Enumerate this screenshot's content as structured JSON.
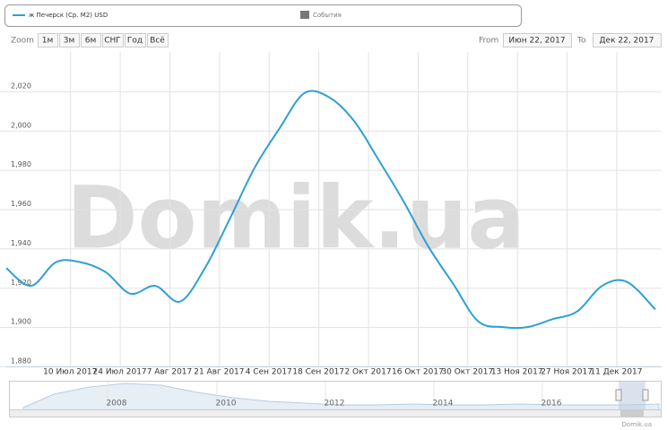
{
  "legend": {
    "events": "События"
  },
  "zoom": {
    "label": "Zoom",
    "buttons": [
      "1м",
      "3м",
      "6м",
      "СНГ",
      "Год",
      "Всё"
    ]
  },
  "range": {
    "from_label": "From",
    "from": "Июн 22, 2017",
    "to_label": "To",
    "to": "Дек 22, 2017"
  },
  "watermark": "Domik.ua",
  "credit": "Domik.ua",
  "navigator": {
    "labels": [
      "2008",
      "2010",
      "2012",
      "2014",
      "2016"
    ]
  },
  "chart_data": {
    "type": "line",
    "x": [
      "2017-06-22",
      "2017-06-29",
      "2017-07-06",
      "2017-07-13",
      "2017-07-20",
      "2017-07-27",
      "2017-08-03",
      "2017-08-10",
      "2017-08-17",
      "2017-08-24",
      "2017-08-31",
      "2017-09-07",
      "2017-09-14",
      "2017-09-21",
      "2017-09-28",
      "2017-10-05",
      "2017-10-12",
      "2017-10-19",
      "2017-10-26",
      "2017-11-02",
      "2017-11-09",
      "2017-11-16",
      "2017-11-23",
      "2017-11-30",
      "2017-12-07",
      "2017-12-14",
      "2017-12-22"
    ],
    "series": [
      {
        "name": "ж Печерск (Ср. М2) USD",
        "color": "#2f9fd6",
        "values": [
          1930,
          1921,
          1933,
          1933,
          1928,
          1917,
          1921,
          1913,
          1930,
          1955,
          1981,
          2001,
          2019,
          2017,
          2005,
          1985,
          1964,
          1941,
          1922,
          1903,
          1900,
          1900,
          1904,
          1908,
          1921,
          1923,
          1909
        ]
      }
    ],
    "xlim": [
      "2017-06-22",
      "2017-12-22"
    ],
    "xticks": [
      {
        "value": "2017-07-10",
        "label": "10 Июл 2017"
      },
      {
        "value": "2017-07-24",
        "label": "24 Июл 2017"
      },
      {
        "value": "2017-08-07",
        "label": "7 Авг 2017"
      },
      {
        "value": "2017-08-21",
        "label": "21 Авг 2017"
      },
      {
        "value": "2017-09-04",
        "label": "4 Сен 2017"
      },
      {
        "value": "2017-09-18",
        "label": "18 Сен 2017"
      },
      {
        "value": "2017-10-02",
        "label": "2 Окт 2017"
      },
      {
        "value": "2017-10-16",
        "label": "16 Окт 2017"
      },
      {
        "value": "2017-10-30",
        "label": "30 Окт 2017"
      },
      {
        "value": "2017-11-13",
        "label": "13 Ноя 2017"
      },
      {
        "value": "2017-11-27",
        "label": "27 Ноя 2017"
      },
      {
        "value": "2017-12-11",
        "label": "11 Дек 2017"
      }
    ],
    "ylim": [
      1880,
      2040
    ],
    "yticks": [
      {
        "value": 1880,
        "label": "1,880"
      },
      {
        "value": 1900,
        "label": "1,900"
      },
      {
        "value": 1920,
        "label": "1,920"
      },
      {
        "value": 1940,
        "label": "1,940"
      },
      {
        "value": 1960,
        "label": "1,960"
      },
      {
        "value": 1980,
        "label": "1,980"
      },
      {
        "value": 2000,
        "label": "2,000"
      },
      {
        "value": 2020,
        "label": "2,020"
      }
    ],
    "grid": true
  }
}
